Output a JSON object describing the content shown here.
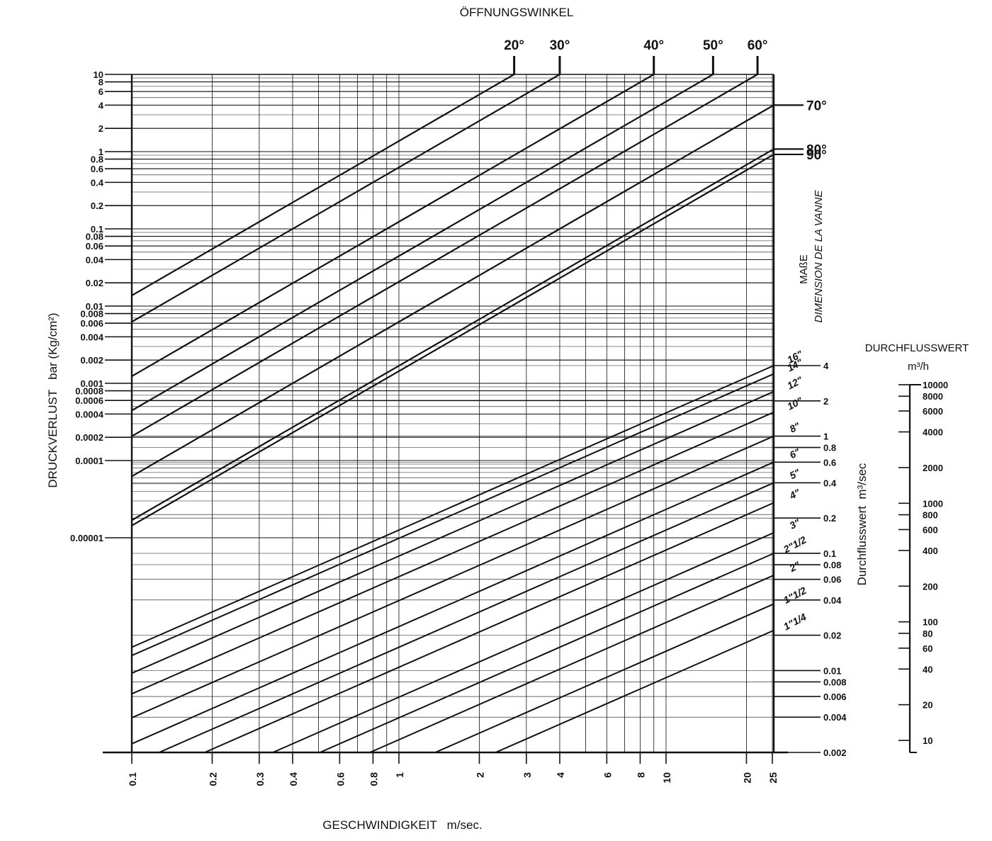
{
  "chart_data": {
    "type": "line",
    "title": "ÖFFNUNGSWINKEL",
    "xlabel": "GESCHWINDIGKEIT   m/sec.",
    "ylabel": "DRUCKVERLUST   bar (Kg/cm²)",
    "right_label_1": "MAßE",
    "right_label_2": "DIMENSION DE LA VANNE",
    "flow_rate_label": "Durchflusswert  m³/sec",
    "flow_value_title": "DURCHFLUSSWERT",
    "flow_value_unit": "m³/h",
    "x_scale": "log",
    "xlim": [
      0.1,
      25
    ],
    "x_ticks": [
      "0.1",
      "0.2",
      "0.3",
      "0.4",
      "0.6",
      "0.8",
      "1",
      "2",
      "3",
      "4",
      "6",
      "8",
      "10",
      "20",
      "25"
    ],
    "y_scale": "log",
    "ylim": [
      1e-05,
      10
    ],
    "y_ticks": [
      "10",
      "8",
      "6",
      "4",
      "2",
      "1",
      "0.8",
      "0.6",
      "0.4",
      "0.2",
      "0.1",
      "0.08",
      "0.06",
      "0.04",
      "0.02",
      "0.01",
      "0.008",
      "0.006",
      "0.004",
      "0.002",
      "0.001",
      "0.0008",
      "0.0006",
      "0.0004",
      "0.0002",
      "0.0001",
      "0.00001"
    ],
    "opening_angles": [
      {
        "label": "20°",
        "edge": "top",
        "value": 10,
        "at_x": 2.7
      },
      {
        "label": "30°",
        "edge": "top",
        "value": 10,
        "at_x": 4.0
      },
      {
        "label": "40°",
        "edge": "top",
        "value": 10,
        "at_x": 9.0
      },
      {
        "label": "50°",
        "edge": "top",
        "value": 10,
        "at_x": 15
      },
      {
        "label": "60°",
        "edge": "top",
        "value": 10,
        "at_x": 22
      },
      {
        "label": "70°",
        "edge": "right",
        "value": 4
      },
      {
        "label": "80°",
        "edge": "right",
        "value": 1.08
      },
      {
        "label": "90°",
        "edge": "right",
        "value": 0.92
      }
    ],
    "flow_ticks": [
      "4",
      "2",
      "1",
      "0.8",
      "0.6",
      "0.4",
      "0.2",
      "0.1",
      "0.08",
      "0.06",
      "0.04",
      "0.02",
      "0.01",
      "0.008",
      "0.006",
      "0.004",
      "0.002"
    ],
    "flow_range": [
      0.002,
      4
    ],
    "valve_sizes": [
      {
        "label": "16\"",
        "flow": 4.0
      },
      {
        "label": "14\"",
        "flow": 3.4
      },
      {
        "label": "12\"",
        "flow": 2.4
      },
      {
        "label": "10\"",
        "flow": 1.6
      },
      {
        "label": "8\"",
        "flow": 1.0
      },
      {
        "label": "6\"",
        "flow": 0.6
      },
      {
        "label": "5\"",
        "flow": 0.4
      },
      {
        "label": "4\"",
        "flow": 0.27
      },
      {
        "label": "3\"",
        "flow": 0.15
      },
      {
        "label": "2\"1/2",
        "flow": 0.1
      },
      {
        "label": "2\"",
        "flow": 0.065
      },
      {
        "label": "1\"1/2",
        "flow": 0.037
      },
      {
        "label": "1\"1/4",
        "flow": 0.022
      }
    ],
    "m3h_ticks": [
      "10000",
      "8000",
      "6000",
      "4000",
      "2000",
      "1000",
      "800",
      "600",
      "400",
      "200",
      "100",
      "80",
      "60",
      "40",
      "20",
      "10"
    ],
    "m3h_range": [
      10,
      10000
    ],
    "grid": true
  }
}
